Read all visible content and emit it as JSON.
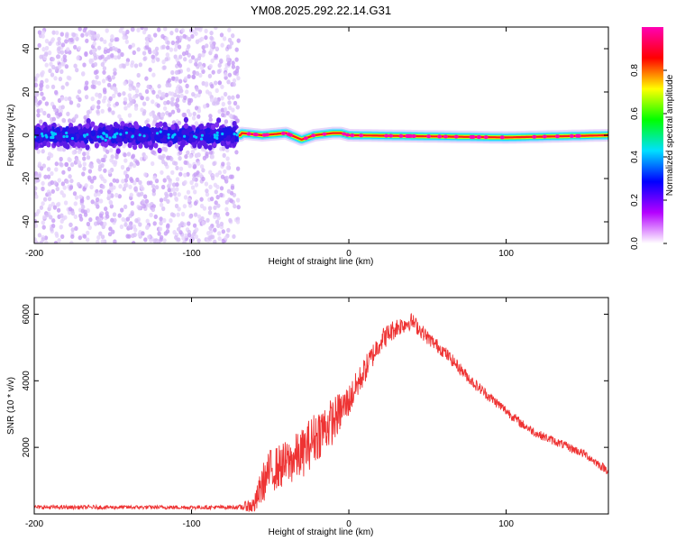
{
  "title": "YM08.2025.292.22.14.G31",
  "chart_data": [
    {
      "type": "heatmap",
      "title": "YM08.2025.292.22.14.G31",
      "xlabel": "Height of straight line (km)",
      "ylabel": "Frequency (Hz)",
      "xlim": [
        -200,
        165
      ],
      "ylim": [
        -50,
        50
      ],
      "xticks": [
        "-200",
        "-100",
        "0",
        "100"
      ],
      "yticks": [
        "-40",
        "-20",
        "0",
        "20",
        "40"
      ],
      "colorbar": {
        "label": "Normalized spectral amplitude",
        "ticks": [
          "0.0",
          "0.2",
          "0.4",
          "0.6",
          "0.8"
        ],
        "range": [
          0,
          1
        ],
        "colors": [
          "#ffffff",
          "#b400ff",
          "#0000ff",
          "#00e0ff",
          "#00ff00",
          "#ffff00",
          "#ff0000",
          "#ff00b4"
        ]
      },
      "regions": [
        {
          "name": "noise",
          "x": [
            -200,
            -70
          ],
          "freq_spread": [
            -50,
            50
          ],
          "core_band": [
            -10,
            8
          ]
        },
        {
          "name": "carrier",
          "x": [
            -70,
            165
          ],
          "frequency": 0
        }
      ],
      "carrier_wiggle": [
        {
          "x": -68,
          "f": 1
        },
        {
          "x": -55,
          "f": 0
        },
        {
          "x": -40,
          "f": 1
        },
        {
          "x": -30,
          "f": -2
        },
        {
          "x": -22,
          "f": 0
        },
        {
          "x": -10,
          "f": 1
        },
        {
          "x": -5,
          "f": 1
        },
        {
          "x": 0,
          "f": 0
        },
        {
          "x": 100,
          "f": -1
        },
        {
          "x": 165,
          "f": 0
        }
      ]
    },
    {
      "type": "line",
      "xlabel": "Height of straight line (km)",
      "ylabel": "SNR (10 * v/v)",
      "xlim": [
        -200,
        165
      ],
      "ylim": [
        0,
        6500
      ],
      "xticks": [
        "-200",
        "-100",
        "0",
        "100"
      ],
      "yticks": [
        "2000",
        "4000",
        "6000"
      ],
      "color": "#ee3333",
      "series": [
        {
          "x": [
            -200,
            -150,
            -100,
            -70,
            -60,
            -55,
            -50,
            -40,
            -30,
            -20,
            -10,
            0,
            10,
            20,
            30,
            40,
            50,
            60,
            70,
            80,
            90,
            100,
            110,
            120,
            130,
            140,
            150,
            160,
            165
          ],
          "values": [
            200,
            200,
            200,
            200,
            250,
            900,
            1300,
            1500,
            1800,
            2400,
            2800,
            3400,
            4300,
            5200,
            5600,
            5800,
            5300,
            4900,
            4400,
            3900,
            3500,
            3100,
            2700,
            2400,
            2200,
            2000,
            1800,
            1450,
            1300
          ],
          "noise": [
            60,
            60,
            60,
            60,
            300,
            600,
            650,
            700,
            750,
            800,
            700,
            500,
            400,
            350,
            300,
            250,
            220,
            200,
            180,
            170,
            160,
            150,
            140,
            130,
            130,
            130,
            130,
            130,
            130
          ]
        }
      ]
    }
  ]
}
